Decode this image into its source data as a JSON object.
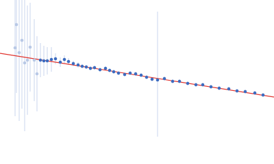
{
  "chart_data": {
    "type": "scatter",
    "xlim": [
      0,
      400
    ],
    "ylim": [
      0,
      200
    ],
    "series": [
      {
        "color": "#b8c8e6",
        "x": [
          22,
          24,
          28,
          32,
          36,
          40,
          44,
          50,
          54
        ],
        "values": [
          130,
          164,
          123,
          141,
          108,
          112,
          131,
          112,
          92
        ],
        "errors": [
          100,
          100,
          100,
          100,
          100,
          80,
          65,
          60,
          55
        ]
      },
      {
        "color": "#3d6cc0",
        "x": [
          59,
          64,
          69,
          75,
          81,
          88,
          94,
          100,
          107,
          114,
          120,
          126,
          132,
          138,
          146,
          154,
          160,
          166,
          173,
          182,
          190,
          198,
          206,
          214,
          222,
          230,
          240,
          252,
          262,
          274,
          286,
          296,
          308,
          320,
          334,
          346,
          358,
          372,
          384
        ],
        "values": [
          112,
          111,
          111,
          113,
          114,
          109,
          113,
          110,
          107,
          105,
          103,
          102,
          100,
          101,
          98,
          100,
          97,
          95,
          93,
          91,
          93,
          92,
          90,
          87,
          84,
          83,
          85,
          81,
          81,
          78,
          76,
          76,
          73,
          71,
          70,
          67,
          66,
          64,
          61
        ],
        "errors": [
          25,
          22,
          20,
          18,
          8,
          7,
          6,
          5,
          4,
          4,
          3,
          3,
          3,
          3,
          3,
          3,
          3,
          3,
          3,
          3,
          3,
          3,
          3,
          3,
          3,
          100,
          3,
          3,
          3,
          3,
          3,
          3,
          3,
          3,
          3,
          3,
          3,
          3,
          3
        ]
      }
    ],
    "fit": {
      "color": "#e0302a",
      "x": [
        0,
        400
      ],
      "values": [
        122,
        58
      ]
    }
  }
}
